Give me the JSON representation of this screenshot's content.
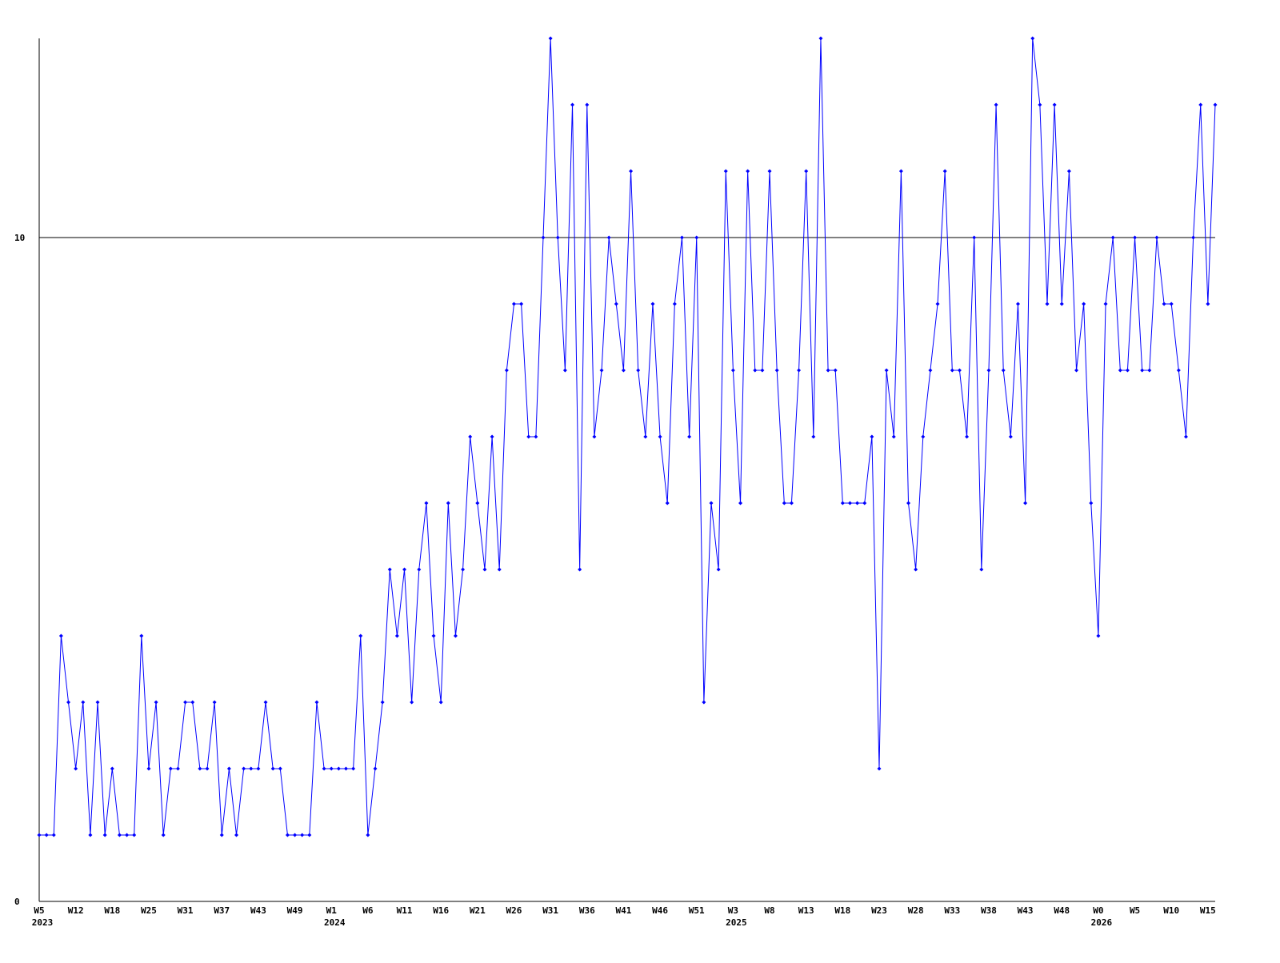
{
  "chart_data": {
    "type": "line",
    "categories": [
      "W5",
      null,
      null,
      null,
      null,
      "W12",
      null,
      null,
      null,
      null,
      "W18",
      null,
      null,
      null,
      null,
      "W25",
      null,
      null,
      null,
      null,
      "W31",
      null,
      null,
      null,
      null,
      "W37",
      null,
      null,
      null,
      null,
      "W43",
      null,
      null,
      null,
      null,
      "W49",
      null,
      null,
      null,
      null,
      "W1",
      null,
      null,
      null,
      null,
      "W6",
      null,
      null,
      null,
      null,
      "W11",
      null,
      null,
      null,
      null,
      "W16",
      null,
      null,
      null,
      null,
      "W21",
      null,
      null,
      null,
      null,
      "W26",
      null,
      null,
      null,
      null,
      "W31",
      null,
      null,
      null,
      null,
      "W36",
      null,
      null,
      null,
      null,
      "W41",
      null,
      null,
      null,
      null,
      "W46",
      null,
      null,
      null,
      null,
      "W51",
      null,
      null,
      null,
      null,
      "W3",
      null,
      null,
      null,
      null,
      "W8",
      null,
      null,
      null,
      null,
      "W13",
      null,
      null,
      null,
      null,
      "W18",
      null,
      null,
      null,
      null,
      "W23",
      null,
      null,
      null,
      null,
      "W28",
      null,
      null,
      null,
      null,
      "W33",
      null,
      null,
      null,
      null,
      "W38",
      null,
      null,
      null,
      null,
      "W43",
      null,
      null,
      null,
      null,
      "W48",
      null,
      null,
      null,
      null,
      "W0",
      null,
      null,
      null,
      null,
      "W5",
      null,
      null,
      null,
      null,
      "W10",
      null,
      null,
      null,
      null,
      "W15",
      null
    ],
    "category_years": [
      "2023",
      null,
      null,
      null,
      null,
      null,
      null,
      null,
      null,
      null,
      null,
      null,
      null,
      null,
      null,
      null,
      null,
      null,
      null,
      null,
      null,
      null,
      null,
      null,
      null,
      null,
      null,
      null,
      null,
      null,
      null,
      null,
      null,
      null,
      null,
      null,
      null,
      null,
      null,
      null,
      "2024",
      null,
      null,
      null,
      null,
      null,
      null,
      null,
      null,
      null,
      null,
      null,
      null,
      null,
      null,
      null,
      null,
      null,
      null,
      null,
      null,
      null,
      null,
      null,
      null,
      null,
      null,
      null,
      null,
      null,
      null,
      null,
      null,
      null,
      null,
      null,
      null,
      null,
      null,
      null,
      null,
      null,
      null,
      null,
      null,
      null,
      null,
      null,
      null,
      null,
      null,
      null,
      null,
      null,
      null,
      "2025",
      null,
      null,
      null,
      null,
      null,
      null,
      null,
      null,
      null,
      null,
      null,
      null,
      null,
      null,
      null,
      null,
      null,
      null,
      null,
      null,
      null,
      null,
      null,
      null,
      null,
      null,
      null,
      null,
      null,
      null,
      null,
      null,
      null,
      null,
      null,
      null,
      null,
      null,
      null,
      null,
      null,
      null,
      null,
      null,
      null,
      null,
      null,
      null,
      null,
      "2026",
      null,
      null,
      null,
      null,
      null,
      null,
      null,
      null,
      null,
      null,
      null,
      null,
      null,
      null,
      null,
      null
    ],
    "values": [
      1,
      1,
      1,
      4,
      3,
      2,
      3,
      1,
      3,
      1,
      2,
      1,
      1,
      1,
      4,
      2,
      3,
      1,
      2,
      2,
      3,
      3,
      2,
      2,
      3,
      1,
      2,
      1,
      2,
      2,
      2,
      3,
      2,
      2,
      1,
      1,
      1,
      1,
      3,
      2,
      2,
      2,
      2,
      2,
      4,
      1,
      2,
      3,
      5,
      4,
      5,
      3,
      5,
      6,
      4,
      3,
      6,
      4,
      5,
      7,
      6,
      5,
      7,
      5,
      8,
      9,
      9,
      7,
      7,
      10,
      13,
      10,
      8,
      12,
      5,
      12,
      7,
      8,
      10,
      9,
      8,
      11,
      8,
      7,
      9,
      7,
      6,
      9,
      10,
      7,
      10,
      3,
      6,
      5,
      11,
      8,
      6,
      11,
      8,
      8,
      11,
      8,
      6,
      6,
      8,
      11,
      7,
      13,
      8,
      8,
      6,
      6,
      6,
      6,
      7,
      2,
      8,
      7,
      11,
      6,
      5,
      7,
      8,
      9,
      11,
      8,
      8,
      7,
      10,
      5,
      8,
      12,
      8,
      7,
      9,
      6,
      13,
      12,
      9,
      12,
      9,
      11,
      8,
      9,
      6,
      4,
      9,
      10,
      8,
      8,
      10,
      8,
      8,
      10,
      9,
      9,
      8,
      7,
      10,
      12,
      9,
      12
    ],
    "color": "#0000ff",
    "ylim": [
      0,
      13
    ],
    "yticks": [
      0,
      10
    ],
    "grid": true
  }
}
